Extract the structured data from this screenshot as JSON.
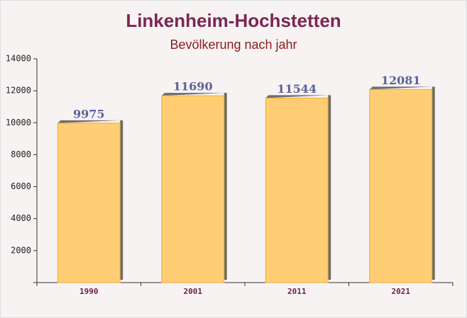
{
  "chart_data": {
    "type": "bar",
    "title": "Linkenheim-Hochstetten",
    "subtitle": "Bevölkerung nach jahr",
    "categories": [
      "1990",
      "2001",
      "2011",
      "2021"
    ],
    "values": [
      9975,
      11690,
      11544,
      12081
    ],
    "color": "#ffc966",
    "ylim": [
      0,
      14000
    ],
    "yticks": [
      0,
      2000,
      4000,
      6000,
      8000,
      10000,
      12000,
      14000
    ],
    "grid": false
  }
}
